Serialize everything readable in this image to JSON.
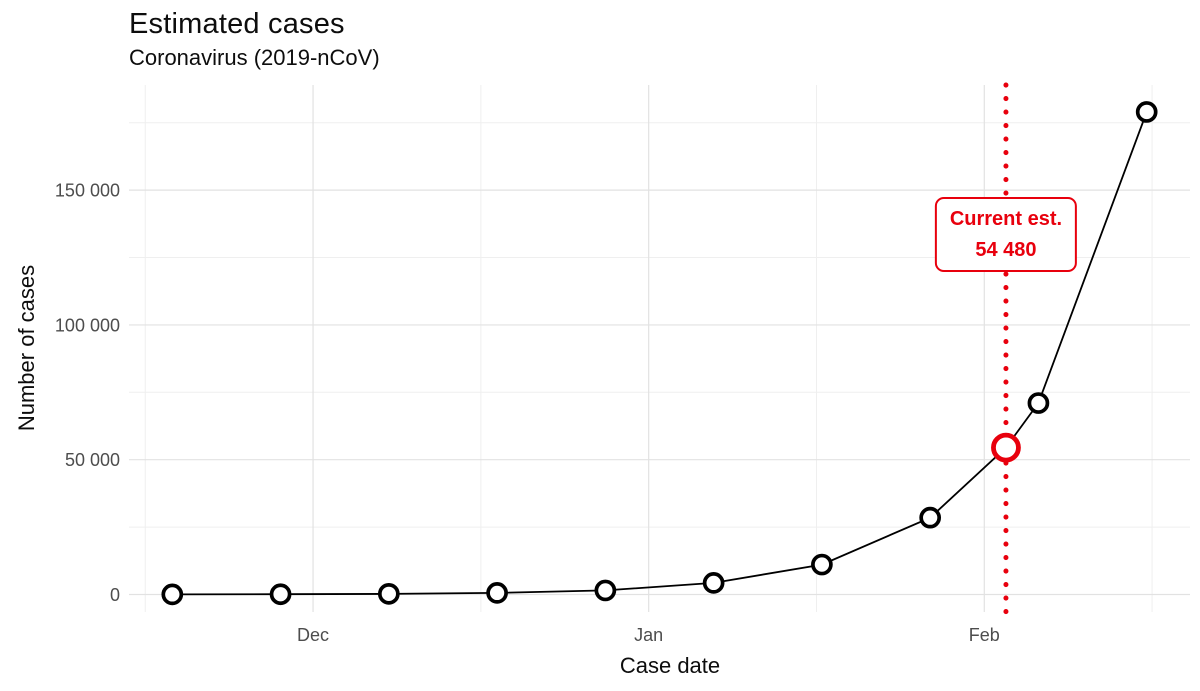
{
  "chart_data": {
    "type": "line",
    "title": "Estimated cases",
    "subtitle": "Coronavirus (2019-nCoV)",
    "xlabel": "Case date",
    "ylabel": "Number of cases",
    "x_unit": "days since Dec 1",
    "xlim": [
      -17,
      81
    ],
    "ylim": [
      -6500,
      189000
    ],
    "grid": true,
    "legend": "none",
    "points": [
      {
        "date": "Nov 18",
        "x": -13,
        "y": 35
      },
      {
        "date": "Nov 28",
        "x": -3,
        "y": 90
      },
      {
        "date": "Dec 8",
        "x": 7,
        "y": 230
      },
      {
        "date": "Dec 18",
        "x": 17,
        "y": 590
      },
      {
        "date": "Dec 28",
        "x": 27,
        "y": 1500
      },
      {
        "date": "Jan 7",
        "x": 37,
        "y": 4300
      },
      {
        "date": "Jan 17",
        "x": 47,
        "y": 11100
      },
      {
        "date": "Jan 27",
        "x": 57,
        "y": 28500
      },
      {
        "date": "Feb 3",
        "x": 64,
        "y": 54480,
        "highlight": true
      },
      {
        "date": "Feb 6",
        "x": 67,
        "y": 71000
      },
      {
        "date": "Feb 16",
        "x": 77,
        "y": 179000
      }
    ],
    "x_ticks": [
      {
        "label": "Dec",
        "x": 0
      },
      {
        "label": "Jan",
        "x": 31
      },
      {
        "label": "Feb",
        "x": 62
      }
    ],
    "x_minor_ticks": [
      -15.5,
      15.5,
      46.5,
      77.5
    ],
    "y_ticks": [
      {
        "label": "0",
        "v": 0
      },
      {
        "label": "50 000",
        "v": 50000
      },
      {
        "label": "100 000",
        "v": 100000
      },
      {
        "label": "150 000",
        "v": 150000
      }
    ],
    "y_minor_ticks": [
      25000,
      75000,
      125000,
      175000
    ],
    "annotation": {
      "line1": "Current est.",
      "line2": "54 480",
      "x": 64,
      "value": 54480
    },
    "colors": {
      "accent_red": "#e8000d",
      "series_black": "#000000",
      "grid_major": "#e2e2e2",
      "grid_minor": "#efefef",
      "tick_text": "#4d4d4d",
      "title_text": "#0d0d0d",
      "point_fill": "#ffffff",
      "background": "#ffffff"
    }
  }
}
